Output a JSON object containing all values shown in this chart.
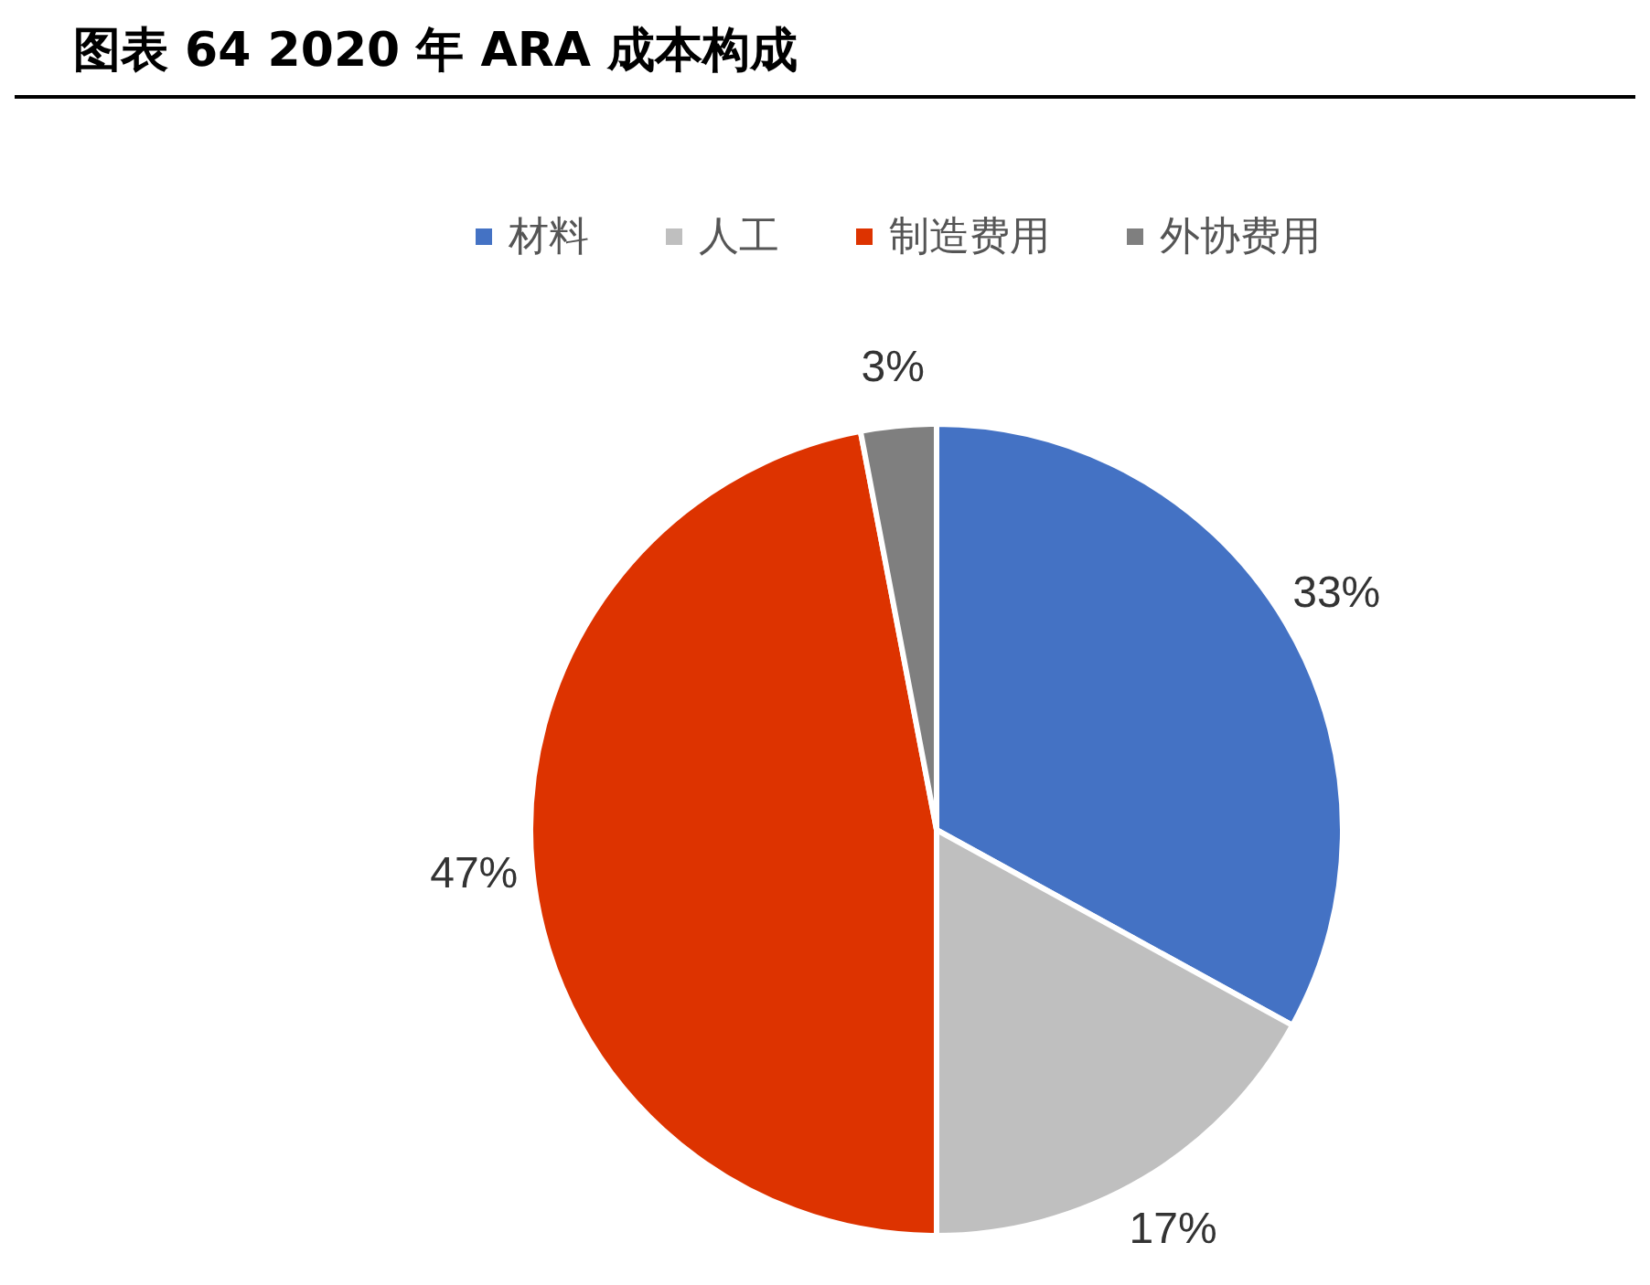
{
  "chart_data": {
    "type": "pie",
    "title": "图表 64 2020 年 ARA 成本构成",
    "categories": [
      "材料",
      "人工",
      "制造费用",
      "外协费用"
    ],
    "values": [
      33,
      17,
      47,
      3
    ],
    "colors": [
      "#4472c4",
      "#bfbfbf",
      "#dd3300",
      "#7f7f7f"
    ],
    "value_labels": [
      "33%",
      "17%",
      "47%",
      "3%"
    ],
    "legend": "top"
  }
}
